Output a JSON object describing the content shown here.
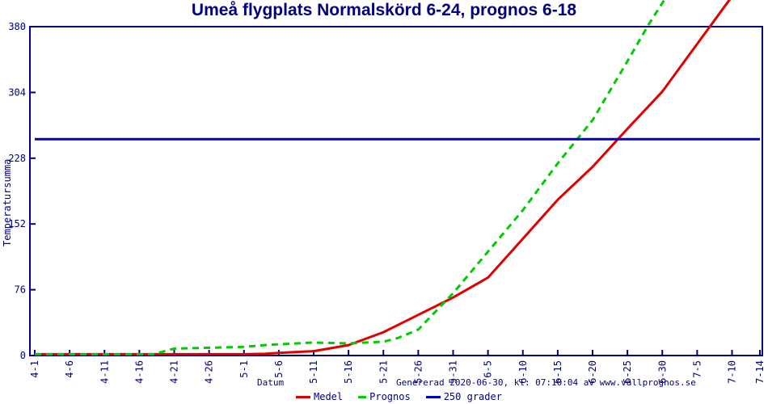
{
  "footer": {
    "generated": "Genererad 2020-06-30, kl: 07:10:04 av www.vallprognos.se"
  },
  "colors": {
    "axis": "#000080",
    "text": "#000080",
    "background": "#ffffff"
  },
  "chart_data": {
    "type": "line",
    "title": "Umeå flygplats Normalskörd 6-24, prognos 6-18",
    "xlabel": "Datum",
    "ylabel": "Temperatursumma",
    "grid": false,
    "legend_position": "bottom",
    "ylim": [
      0,
      380
    ],
    "y_ticks": [
      0,
      76,
      152,
      228,
      304,
      380
    ],
    "x_tick_labels": [
      "4-1",
      "4-6",
      "4-11",
      "4-16",
      "4-21",
      "4-26",
      "5-1",
      "5-6",
      "5-11",
      "5-16",
      "5-21",
      "5-26",
      "5-31",
      "6-5",
      "6-10",
      "6-15",
      "6-20",
      "6-25",
      "6-30",
      "7-5",
      "7-10",
      "7-14"
    ],
    "x_tick_days": [
      0,
      5,
      10,
      15,
      20,
      25,
      30,
      35,
      40,
      45,
      50,
      55,
      60,
      65,
      70,
      75,
      80,
      85,
      90,
      95,
      100,
      104
    ],
    "xlim_days": [
      0,
      104
    ],
    "series": [
      {
        "name": "Medel",
        "color": "#e00000",
        "style": "solid",
        "points": [
          [
            0,
            1.5
          ],
          [
            5,
            1.5
          ],
          [
            10,
            1.5
          ],
          [
            15,
            1.5
          ],
          [
            20,
            1.5
          ],
          [
            25,
            1.5
          ],
          [
            30,
            1.5
          ],
          [
            33,
            2
          ],
          [
            35,
            3
          ],
          [
            40,
            5
          ],
          [
            45,
            12
          ],
          [
            50,
            27
          ],
          [
            55,
            47
          ],
          [
            60,
            67
          ],
          [
            65,
            90
          ],
          [
            70,
            135
          ],
          [
            75,
            180
          ],
          [
            80,
            218
          ],
          [
            85,
            262
          ],
          [
            90,
            305
          ],
          [
            95,
            360
          ],
          [
            100,
            415
          ],
          [
            104,
            462
          ]
        ]
      },
      {
        "name": "Prognos",
        "color": "#00cc00",
        "style": "dashed",
        "points": [
          [
            0,
            1.5
          ],
          [
            5,
            1.5
          ],
          [
            10,
            1.5
          ],
          [
            15,
            1.5
          ],
          [
            17,
            1.5
          ],
          [
            20,
            8
          ],
          [
            25,
            9
          ],
          [
            30,
            10
          ],
          [
            33,
            12
          ],
          [
            35,
            13
          ],
          [
            40,
            15
          ],
          [
            45,
            14
          ],
          [
            50,
            16
          ],
          [
            52,
            20
          ],
          [
            55,
            30
          ],
          [
            60,
            72
          ],
          [
            65,
            120
          ],
          [
            70,
            168
          ],
          [
            75,
            222
          ],
          [
            80,
            272
          ],
          [
            85,
            340
          ],
          [
            88,
            382
          ],
          [
            91,
            420
          ]
        ]
      },
      {
        "name": "250 grader",
        "color": "#0000cc",
        "style": "solid",
        "points": [
          [
            0,
            250
          ],
          [
            104,
            250
          ]
        ]
      }
    ]
  }
}
